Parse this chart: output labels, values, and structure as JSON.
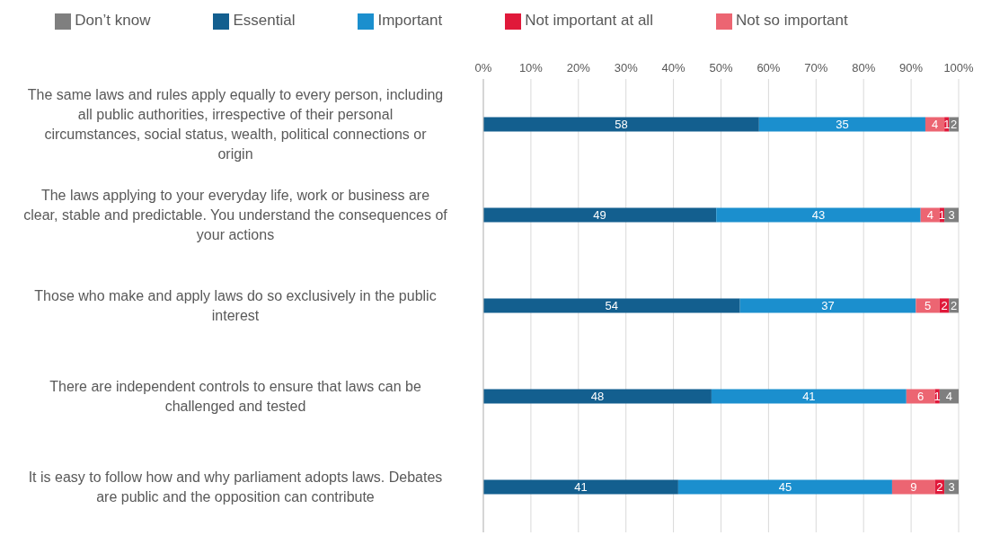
{
  "chart_data": {
    "type": "bar",
    "orientation": "horizontal",
    "stacked": true,
    "data_labels": true,
    "grid": "x",
    "legend": "top",
    "categories": [
      "The same laws and rules apply equally to every person, including all public authorities, irrespective of their personal circumstances, social status, wealth, political connections or origin",
      "The laws applying to your everyday life, work or business are clear, stable and predictable. You understand the consequences of your actions",
      "Those who make and apply laws do so exclusively in the public interest",
      "There are independent controls to ensure that laws can be challenged and tested",
      "It is easy to follow how and why parliament adopts laws. Debates are public and the opposition can contribute"
    ],
    "series": [
      {
        "name": "Essential",
        "color": "#135f8f",
        "values": [
          58,
          49,
          54,
          48,
          41
        ]
      },
      {
        "name": "Important",
        "color": "#1b8fce",
        "values": [
          35,
          43,
          37,
          41,
          45
        ]
      },
      {
        "name": "Not so important",
        "color": "#ec6572",
        "values": [
          4,
          4,
          5,
          6,
          9
        ]
      },
      {
        "name": "Not important at all",
        "color": "#e0193a",
        "values": [
          1,
          1,
          2,
          1,
          2
        ]
      },
      {
        "name": "Don’t know",
        "color": "#7f7f7f",
        "values": [
          2,
          3,
          2,
          4,
          3
        ]
      }
    ],
    "xlim": [
      0,
      100
    ],
    "xticks": [
      {
        "value": 0,
        "label": "0%"
      },
      {
        "value": 10,
        "label": "10%"
      },
      {
        "value": 20,
        "label": "20%"
      },
      {
        "value": 30,
        "label": "30%"
      },
      {
        "value": 40,
        "label": "40%"
      },
      {
        "value": 50,
        "label": "50%"
      },
      {
        "value": 60,
        "label": "60%"
      },
      {
        "value": 70,
        "label": "70%"
      },
      {
        "value": 80,
        "label": "80%"
      },
      {
        "value": 90,
        "label": "90%"
      },
      {
        "value": 100,
        "label": "100%"
      }
    ]
  }
}
